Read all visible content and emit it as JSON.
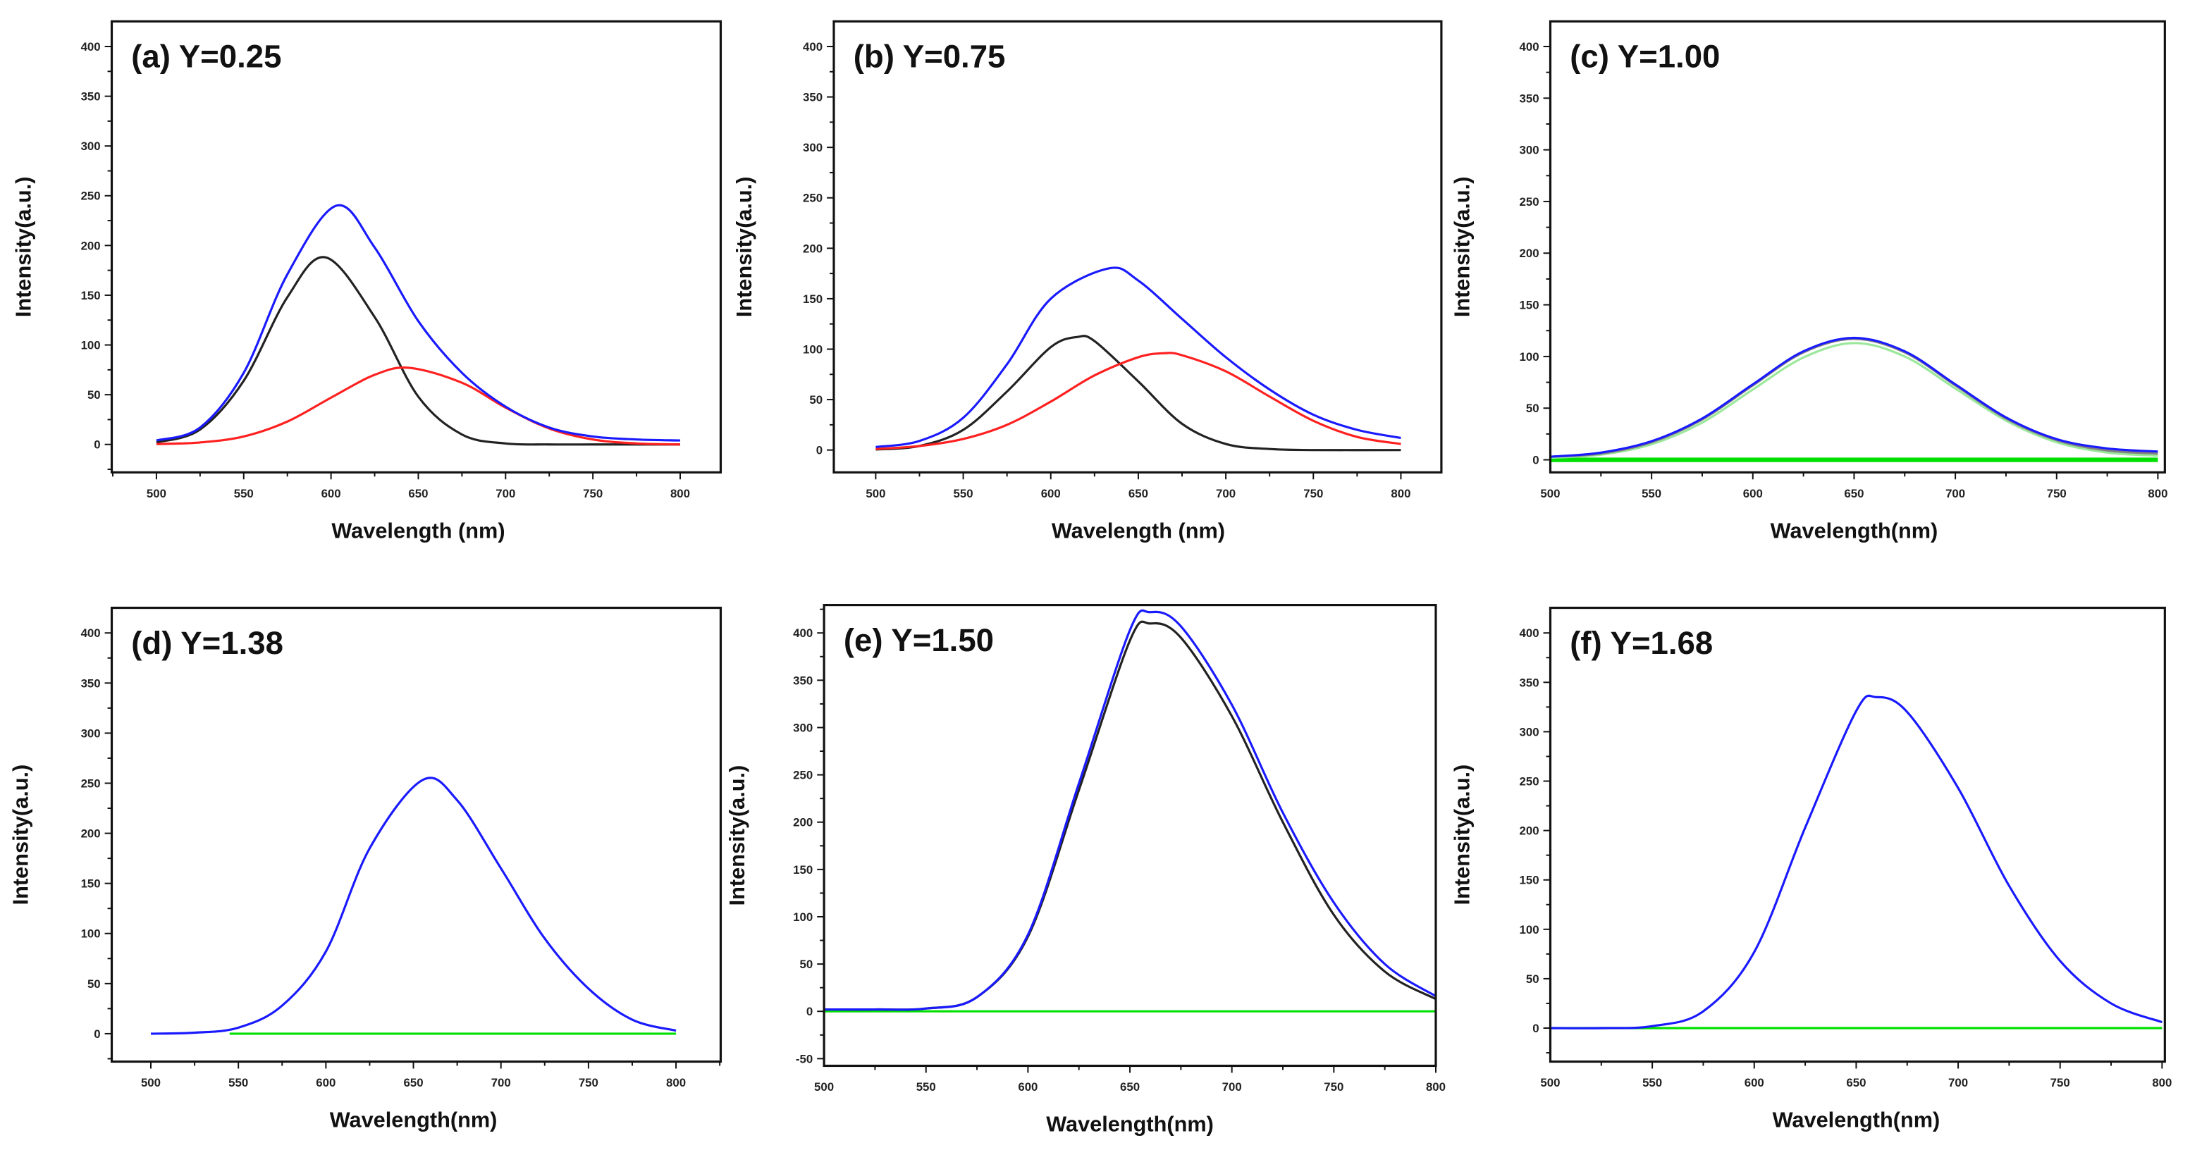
{
  "chart_data": [
    {
      "type": "line",
      "title": "(a) Y=0.25",
      "xlabel": "Wavelength (nm)",
      "ylabel": "Intensity(a.u.)",
      "xlim": [
        500,
        800
      ],
      "ylim": [
        -28,
        425
      ],
      "xticks": [
        "500",
        "550",
        "600",
        "650",
        "700",
        "750",
        "800"
      ],
      "yticks": [
        "0",
        "50",
        "100",
        "150",
        "200",
        "250",
        "300",
        "350",
        "400"
      ],
      "series": [
        {
          "color": "#222222",
          "x": [
            500,
            525,
            550,
            575,
            597,
            625,
            650,
            675,
            700,
            725,
            750,
            775,
            800
          ],
          "y": [
            2,
            15,
            64,
            148,
            188,
            128,
            48,
            10,
            1,
            0,
            0,
            0,
            0
          ]
        },
        {
          "color": "#ff2020",
          "x": [
            500,
            525,
            550,
            575,
            600,
            625,
            645,
            675,
            700,
            725,
            750,
            775,
            800
          ],
          "y": [
            0.4,
            2,
            8,
            23,
            47,
            70,
            77,
            62,
            37,
            16,
            5,
            1,
            0
          ]
        },
        {
          "color": "#1a1aff",
          "x": [
            500,
            525,
            550,
            575,
            603,
            625,
            650,
            675,
            700,
            725,
            750,
            775,
            800
          ],
          "y": [
            4,
            17,
            72,
            171,
            240,
            198,
            124,
            72,
            38,
            17,
            8,
            5,
            4
          ]
        }
      ]
    },
    {
      "type": "line",
      "title": "(b) Y=0.75",
      "xlabel": "Wavelength (nm)",
      "ylabel": "Intensity(a.u.)",
      "xlim": [
        500,
        800
      ],
      "ylim": [
        -22,
        425
      ],
      "xticks": [
        "500",
        "550",
        "600",
        "650",
        "700",
        "750",
        "800"
      ],
      "yticks": [
        "0",
        "50",
        "100",
        "150",
        "200",
        "250",
        "300",
        "350",
        "400"
      ],
      "series": [
        {
          "color": "#222222",
          "x": [
            500,
            525,
            550,
            575,
            600,
            615,
            625,
            650,
            675,
            700,
            725,
            750,
            800
          ],
          "y": [
            0.5,
            4,
            20,
            58,
            102,
            112,
            108,
            68,
            26,
            6,
            1,
            0,
            0
          ]
        },
        {
          "color": "#ff2020",
          "x": [
            500,
            525,
            550,
            575,
            600,
            625,
            650,
            665,
            675,
            700,
            725,
            750,
            775,
            800
          ],
          "y": [
            1,
            4,
            11,
            25,
            48,
            74,
            92,
            96,
            94,
            78,
            53,
            29,
            13,
            6
          ]
        },
        {
          "color": "#1a1aff",
          "x": [
            500,
            525,
            550,
            575,
            600,
            633,
            650,
            675,
            700,
            725,
            750,
            775,
            800
          ],
          "y": [
            3,
            9,
            32,
            85,
            150,
            180,
            168,
            130,
            92,
            60,
            35,
            20,
            12
          ]
        }
      ]
    },
    {
      "type": "line",
      "title": "(c) Y=1.00",
      "xlabel": "Wavelength(nm)",
      "ylabel": "Intensity(a.u.)",
      "xlim": [
        500,
        800
      ],
      "ylim": [
        -12,
        425
      ],
      "xticks": [
        "500",
        "550",
        "600",
        "650",
        "700",
        "750",
        "800"
      ],
      "yticks": [
        "0",
        "50",
        "100",
        "150",
        "200",
        "250",
        "300",
        "350",
        "400"
      ],
      "series": [
        {
          "color": "#00e000",
          "x": [
            500,
            800
          ],
          "y": [
            0,
            0
          ]
        },
        {
          "color": "#9be89b",
          "x": [
            500,
            525,
            550,
            575,
            600,
            625,
            650,
            675,
            700,
            725,
            750,
            775,
            800
          ],
          "y": [
            2,
            5,
            15,
            36,
            68,
            99,
            113,
            100,
            69,
            38,
            17,
            7,
            4
          ]
        },
        {
          "color": "#808080",
          "x": [
            500,
            525,
            550,
            575,
            600,
            625,
            650,
            675,
            700,
            725,
            750,
            775,
            800
          ],
          "y": [
            3,
            6,
            17,
            39,
            72,
            104,
            117,
            104,
            72,
            40,
            19,
            9,
            6
          ]
        },
        {
          "color": "#1a1aff",
          "x": [
            500,
            525,
            550,
            575,
            600,
            625,
            650,
            675,
            700,
            725,
            750,
            775,
            800
          ],
          "y": [
            3,
            7,
            18,
            40,
            73,
            105,
            118,
            105,
            73,
            41,
            20,
            11,
            8
          ]
        }
      ]
    },
    {
      "type": "line",
      "title": "(d) Y=1.38",
      "xlabel": "Wavelength(nm)",
      "ylabel": "Intensity(a.u.)",
      "xlim": [
        500,
        800
      ],
      "ylim": [
        -28,
        425
      ],
      "xticks": [
        "500",
        "550",
        "600",
        "650",
        "700",
        "750",
        "800"
      ],
      "yticks": [
        "0",
        "50",
        "100",
        "150",
        "200",
        "250",
        "300",
        "350",
        "400"
      ],
      "series": [
        {
          "color": "#00e000",
          "x": [
            545,
            800
          ],
          "y": [
            0,
            0
          ]
        },
        {
          "color": "#1a1aff",
          "x": [
            500,
            525,
            550,
            575,
            600,
            625,
            655,
            675,
            700,
            725,
            750,
            775,
            800
          ],
          "y": [
            0,
            1,
            6,
            28,
            82,
            185,
            253,
            233,
            165,
            95,
            45,
            14,
            3
          ]
        }
      ]
    },
    {
      "type": "line",
      "title": "(e) Y=1.50",
      "xlabel": "Wavelength(nm)",
      "ylabel": "Intensity(a.u.)",
      "xlim": [
        500,
        800
      ],
      "ylim": [
        -50,
        435
      ],
      "xticks": [
        "500",
        "550",
        "600",
        "650",
        "700",
        "750",
        "800"
      ],
      "yticks": [
        "-50",
        "0",
        "50",
        "100",
        "150",
        "200",
        "250",
        "300",
        "350",
        "400"
      ],
      "series": [
        {
          "color": "#00e000",
          "x": [
            500,
            800
          ],
          "y": [
            0,
            0
          ]
        },
        {
          "color": "#222222",
          "x": [
            500,
            525,
            550,
            575,
            600,
            625,
            650,
            660,
            675,
            700,
            725,
            750,
            775,
            800
          ],
          "y": [
            2,
            2,
            3,
            15,
            79,
            234,
            392,
            410,
            395,
            312,
            200,
            102,
            42,
            13
          ]
        },
        {
          "color": "#1a1aff",
          "x": [
            500,
            525,
            550,
            575,
            600,
            625,
            650,
            660,
            675,
            700,
            725,
            750,
            775,
            800
          ],
          "y": [
            2,
            2,
            3,
            15,
            81,
            241,
            403,
            422,
            407,
            324,
            210,
            115,
            50,
            16
          ]
        }
      ]
    },
    {
      "type": "line",
      "title": "(f) Y=1.68",
      "xlabel": "Wavelength(nm)",
      "ylabel": "Intensity(a.u.)",
      "xlim": [
        500,
        800
      ],
      "ylim": [
        -33,
        425
      ],
      "xticks": [
        "500",
        "550",
        "600",
        "650",
        "700",
        "750",
        "800"
      ],
      "yticks": [
        "0",
        "50",
        "100",
        "150",
        "200",
        "250",
        "300",
        "350",
        "400"
      ],
      "series": [
        {
          "color": "#00e000",
          "x": [
            500,
            800
          ],
          "y": [
            0,
            0
          ]
        },
        {
          "color": "#1a1aff",
          "x": [
            500,
            525,
            550,
            575,
            600,
            625,
            650,
            660,
            675,
            700,
            725,
            750,
            775,
            800
          ],
          "y": [
            0,
            0,
            2,
            17,
            77,
            203,
            321,
            335,
            320,
            243,
            144,
            68,
            25,
            6
          ]
        }
      ]
    }
  ]
}
